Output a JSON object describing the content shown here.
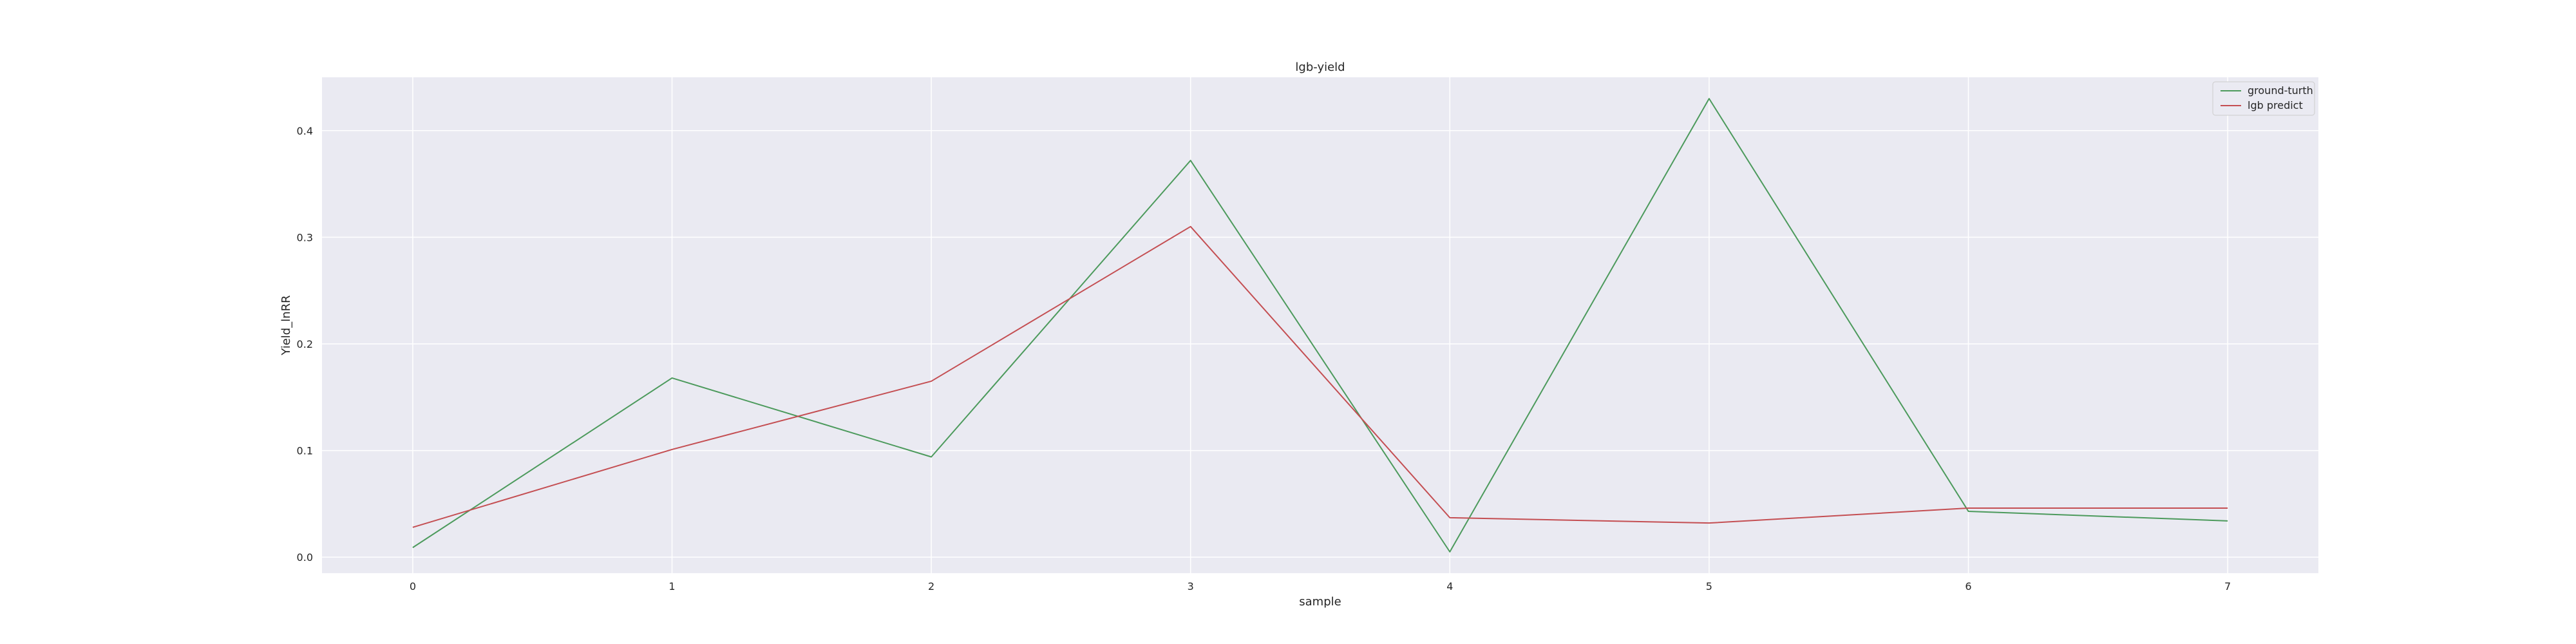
{
  "chart_data": {
    "type": "line",
    "title": "lgb-yield",
    "xlabel": "sample",
    "ylabel": "Yield_lnRR",
    "x": [
      0,
      1,
      2,
      3,
      4,
      5,
      6,
      7
    ],
    "series": [
      {
        "name": "ground-turth",
        "color": "#4c9a5c",
        "values": [
          0.009,
          0.168,
          0.094,
          0.372,
          0.005,
          0.43,
          0.043,
          0.034
        ]
      },
      {
        "name": "lgb predict",
        "color": "#c44e52",
        "values": [
          0.028,
          0.101,
          0.165,
          0.31,
          0.037,
          0.032,
          0.046,
          0.046
        ]
      }
    ],
    "xlim": [
      -0.35,
      7.35
    ],
    "ylim": [
      -0.015,
      0.45
    ],
    "xticks": [
      0,
      1,
      2,
      3,
      4,
      5,
      6,
      7
    ],
    "yticks": [
      0.0,
      0.1,
      0.2,
      0.3,
      0.4
    ],
    "ytick_labels": [
      "0.0",
      "0.1",
      "0.2",
      "0.3",
      "0.4"
    ],
    "grid": true,
    "legend_position": "top-right",
    "background": "#eaeaf2",
    "grid_color": "#ffffff"
  }
}
